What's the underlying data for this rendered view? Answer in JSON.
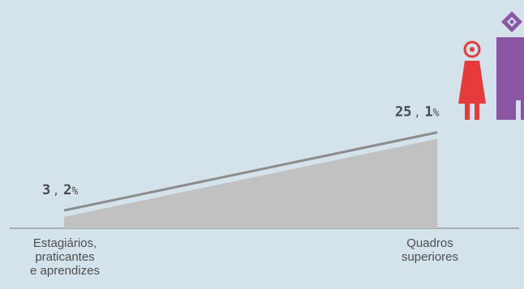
{
  "chart_data": {
    "type": "area",
    "categories": [
      "Estagiários, praticantes e aprendizes",
      "Quadros superiores"
    ],
    "values": [
      3.2,
      25.1
    ],
    "data_labels": [
      {
        "main": "3",
        "sep": ",",
        "decimal": "2",
        "unit": "%"
      },
      {
        "main": "25",
        "sep": ",",
        "decimal": "1",
        "unit": "%"
      }
    ],
    "category_lines": [
      [
        "Estagiários,",
        "praticantes",
        "e aprendizes"
      ],
      [
        "Quadros",
        "superiores"
      ]
    ],
    "colors": {
      "background": "#d3e2eb",
      "area": "#c1c1c1",
      "line": "#8c8c8c",
      "baseline": "#9a9a9a",
      "woman_icon": "#e53b3b",
      "man_icon": "#8a55a3"
    },
    "icons": [
      "woman-icon",
      "man-icon"
    ]
  }
}
